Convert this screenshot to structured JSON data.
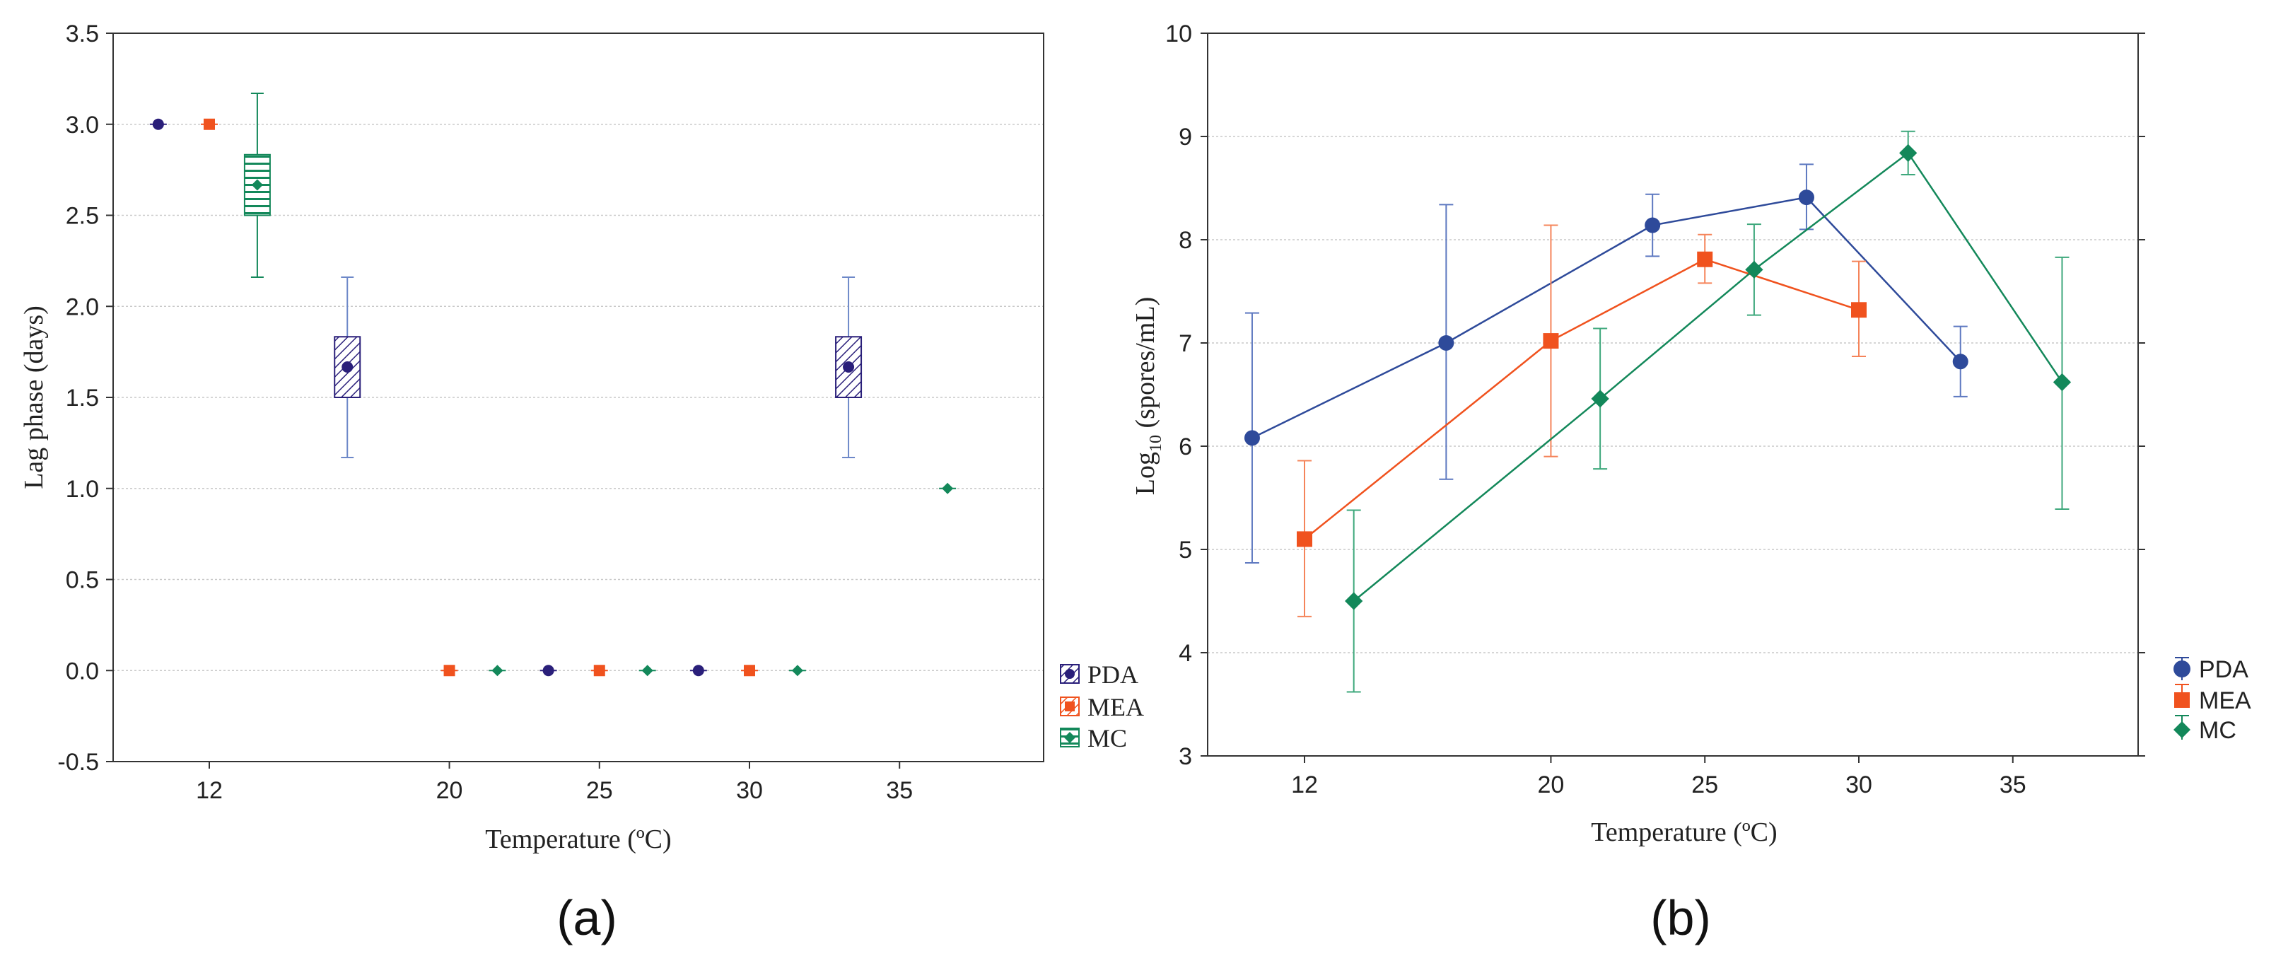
{
  "colors": {
    "pda": "#2e4a9a",
    "pda_a": "#2a1f7a",
    "mea": "#f0521e",
    "mc": "#13885a",
    "grid": "#c9c9c9"
  },
  "panels": {
    "a_label": "(a)",
    "b_label": "(b)"
  },
  "chart_data": [
    {
      "type": "box",
      "title": "",
      "xlabel": "Temperature (ºC)",
      "ylabel": "Lag phase (days)",
      "ylim": [
        -0.5,
        3.5
      ],
      "yticks": [
        "-0.5",
        "0.0",
        "0.5",
        "1.0",
        "1.5",
        "2.0",
        "2.5",
        "3.0",
        "3.5"
      ],
      "xticks": [
        "12",
        "20",
        "25",
        "30",
        "35"
      ],
      "legend": [
        "PDA",
        "MEA",
        "MC"
      ],
      "legend_position": "right",
      "points": [
        {
          "series": "PDA",
          "x": 10.3,
          "mean": 3.0
        },
        {
          "series": "MEA",
          "x": 12.0,
          "mean": 3.0
        },
        {
          "series": "MC",
          "x": 13.6,
          "mean": 2.667,
          "box": [
            2.5,
            2.833
          ],
          "whisker": [
            2.16,
            3.17
          ]
        },
        {
          "series": "PDA",
          "x": 16.6,
          "mean": 1.667,
          "box": [
            1.5,
            1.833
          ],
          "whisker": [
            1.17,
            2.16
          ]
        },
        {
          "series": "MEA",
          "x": 20.0,
          "mean": 0.0
        },
        {
          "series": "MC",
          "x": 21.6,
          "mean": 0.0
        },
        {
          "series": "PDA",
          "x": 23.3,
          "mean": 0.0
        },
        {
          "series": "MEA",
          "x": 25.0,
          "mean": 0.0
        },
        {
          "series": "MC",
          "x": 26.6,
          "mean": 0.0
        },
        {
          "series": "PDA",
          "x": 28.3,
          "mean": 0.0
        },
        {
          "series": "MEA",
          "x": 30.0,
          "mean": 0.0
        },
        {
          "series": "MC",
          "x": 31.6,
          "mean": 0.0
        },
        {
          "series": "PDA",
          "x": 33.3,
          "mean": 1.667,
          "box": [
            1.5,
            1.833
          ],
          "whisker": [
            1.17,
            2.16
          ]
        },
        {
          "series": "MC",
          "x": 36.6,
          "mean": 1.0
        }
      ]
    },
    {
      "type": "line",
      "title": "",
      "xlabel": "Temperature (ºC)",
      "ylabel_main": "Log",
      "ylabel_sub": "10",
      "ylabel_rest": " (spores/mL)",
      "ylim": [
        3,
        10
      ],
      "yticks": [
        "3",
        "4",
        "5",
        "6",
        "7",
        "8",
        "9",
        "10"
      ],
      "xticks": [
        "12",
        "20",
        "25",
        "30",
        "35"
      ],
      "legend": [
        "PDA",
        "MEA",
        "MC"
      ],
      "legend_position": "right",
      "series": [
        {
          "name": "PDA",
          "x": [
            10.3,
            16.6,
            23.3,
            28.3,
            33.3
          ],
          "y": [
            6.08,
            7.0,
            8.14,
            8.41,
            6.82
          ],
          "err_low": [
            4.87,
            5.68,
            7.84,
            8.1,
            6.48
          ],
          "err_high": [
            7.29,
            8.34,
            8.44,
            8.73,
            7.16
          ]
        },
        {
          "name": "MEA",
          "x": [
            12.0,
            20.0,
            25.0,
            30.0
          ],
          "y": [
            5.1,
            7.02,
            7.81,
            7.32
          ],
          "err_low": [
            4.35,
            5.9,
            7.58,
            6.87
          ],
          "err_high": [
            5.86,
            8.14,
            8.05,
            7.79
          ]
        },
        {
          "name": "MC",
          "x": [
            13.6,
            21.6,
            26.6,
            31.6,
            36.6
          ],
          "y": [
            4.5,
            6.46,
            7.71,
            8.84,
            6.62
          ],
          "err_low": [
            3.62,
            5.78,
            7.27,
            8.63,
            5.39
          ],
          "err_high": [
            5.38,
            7.14,
            8.15,
            9.05,
            7.83
          ]
        }
      ]
    }
  ]
}
